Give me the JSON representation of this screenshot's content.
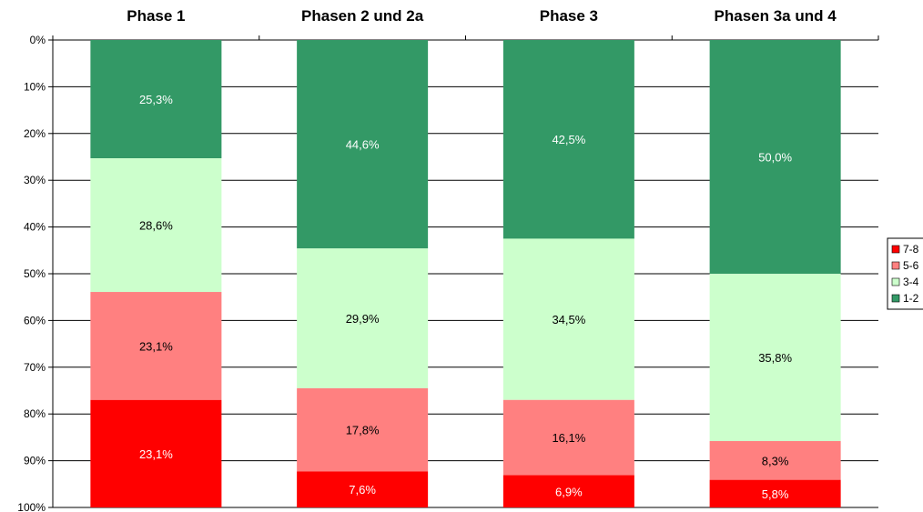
{
  "chart_data": {
    "type": "bar",
    "stacked": true,
    "percent": true,
    "y_axis_reversed": true,
    "categories": [
      "Phase 1",
      "Phasen 2 und 2a",
      "Phase 3",
      "Phasen 3a und 4"
    ],
    "y_ticks": [
      "0%",
      "10%",
      "20%",
      "30%",
      "40%",
      "50%",
      "60%",
      "70%",
      "80%",
      "90%",
      "100%"
    ],
    "ylim": [
      0,
      100
    ],
    "grid": true,
    "legend_position": "right",
    "series": [
      {
        "name": "1-2",
        "color": "#339966",
        "label_color": "#ffffff",
        "values": [
          25.3,
          44.6,
          42.5,
          50.0
        ],
        "labels": [
          "25,3%",
          "44,6%",
          "42,5%",
          "50,0%"
        ]
      },
      {
        "name": "3-4",
        "color": "#ccffcc",
        "label_color": "#000000",
        "values": [
          28.6,
          29.9,
          34.5,
          35.8
        ],
        "labels": [
          "28,6%",
          "29,9%",
          "34,5%",
          "35,8%"
        ]
      },
      {
        "name": "5-6",
        "color": "#ff8080",
        "label_color": "#000000",
        "values": [
          23.1,
          17.8,
          16.1,
          8.3
        ],
        "labels": [
          "23,1%",
          "17,8%",
          "16,1%",
          "8,3%"
        ]
      },
      {
        "name": "7-8",
        "color": "#ff0000",
        "label_color": "#ffffff",
        "values": [
          23.1,
          7.6,
          6.9,
          5.8
        ],
        "labels": [
          "23,1%",
          "7,6%",
          "6,9%",
          "5,8%"
        ]
      }
    ],
    "legend_order": [
      "7-8",
      "5-6",
      "3-4",
      "1-2"
    ]
  }
}
